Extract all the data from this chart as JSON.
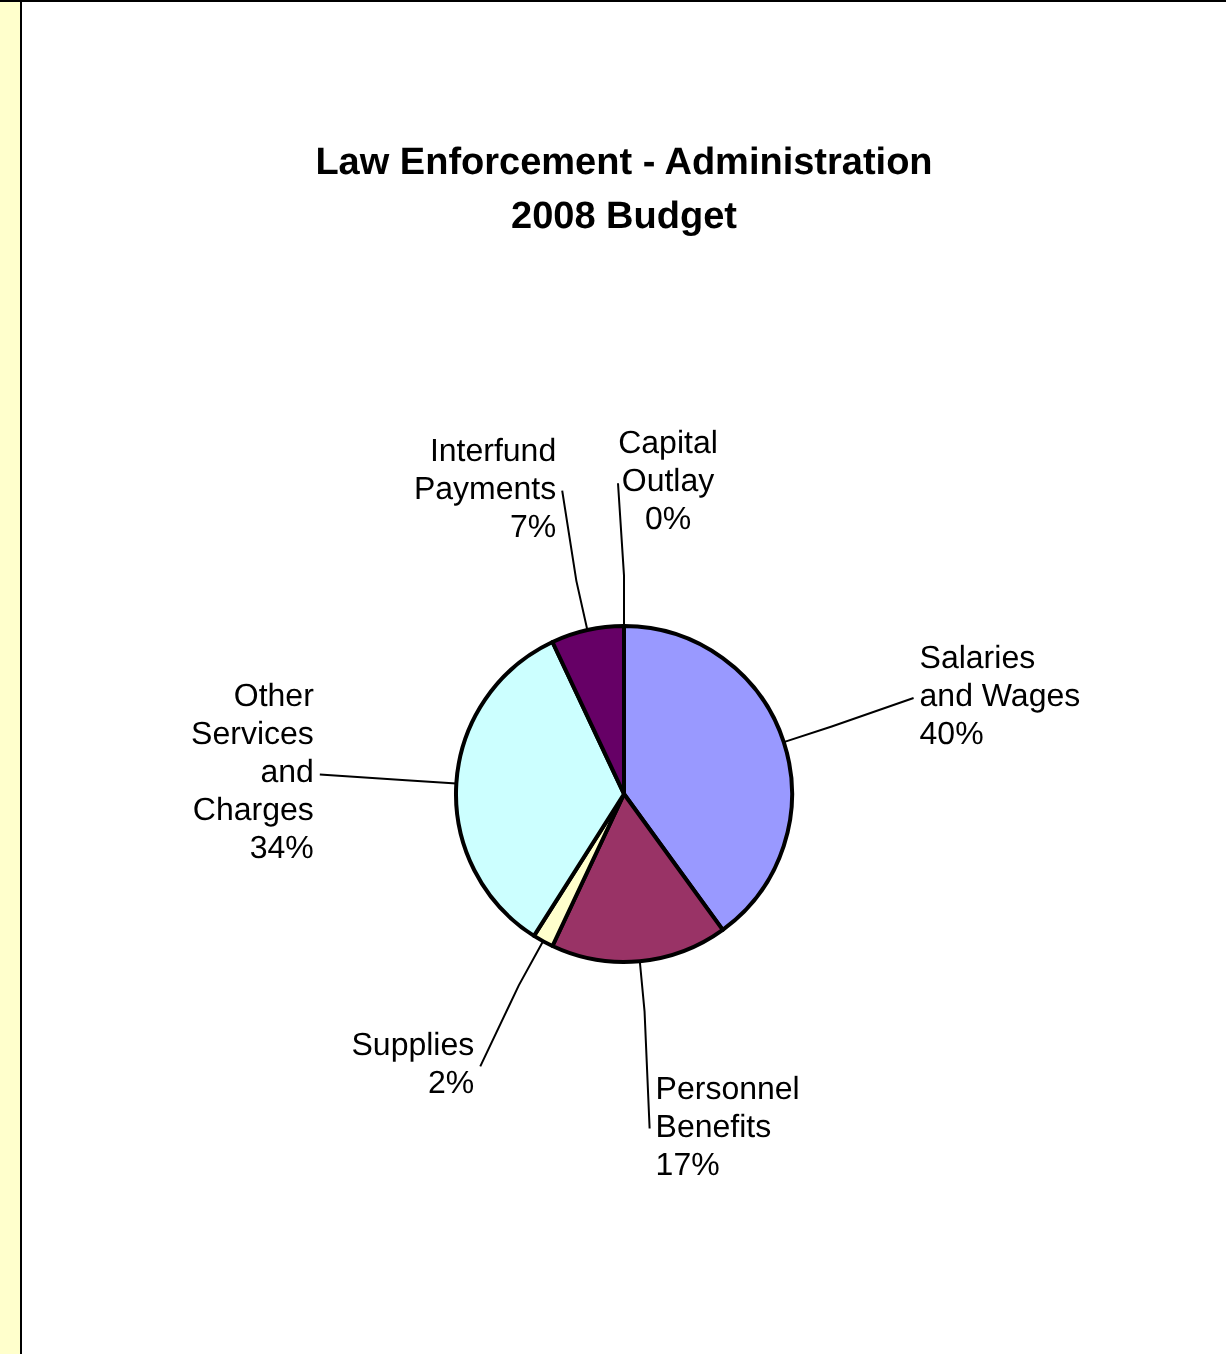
{
  "chart_data": {
    "type": "pie",
    "title": "Law Enforcement - Administration\n2008 Budget",
    "categories": [
      "Salaries and Wages",
      "Personnel Benefits",
      "Supplies",
      "Other Services and Charges",
      "Interfund Payments",
      "Capital Outlay"
    ],
    "values": [
      40,
      17,
      2,
      34,
      7,
      0
    ],
    "colors": [
      "#9999ff",
      "#993366",
      "#ffffcc",
      "#ccffff",
      "#660066",
      "#ff8080"
    ],
    "value_labels": [
      "40%",
      "17%",
      "2%",
      "34%",
      "7%",
      "0%"
    ]
  }
}
